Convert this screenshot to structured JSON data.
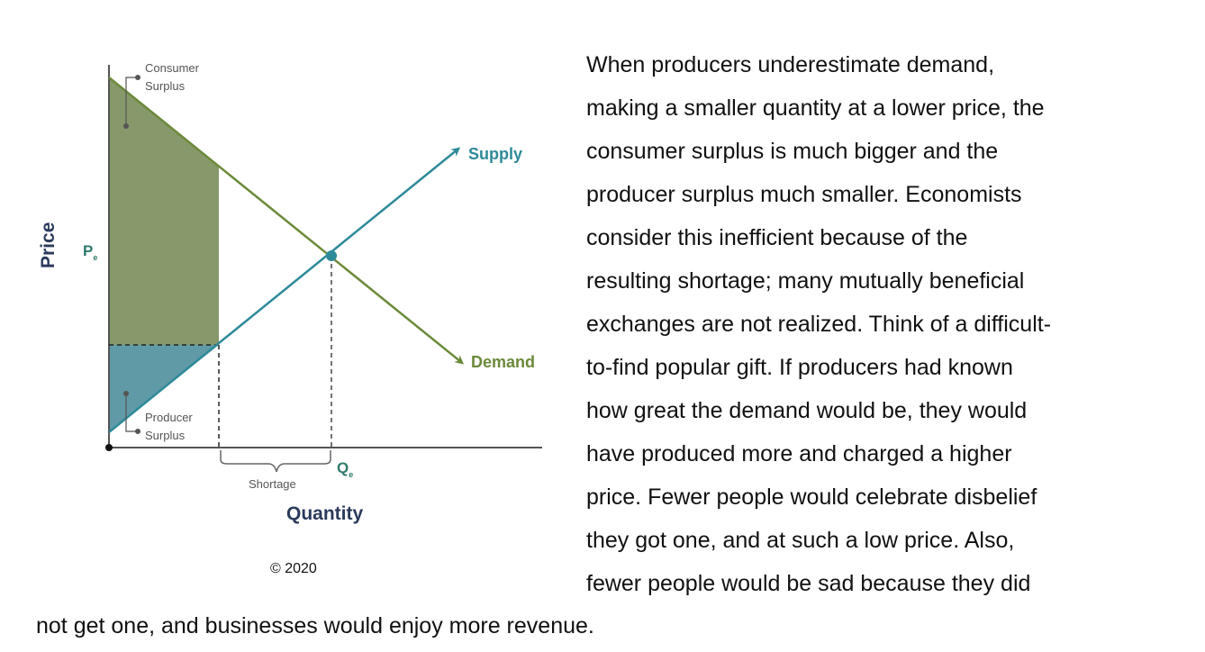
{
  "figure": {
    "y_axis_label": "Price",
    "x_axis_label": "Quantity",
    "price_eq_label": "P",
    "price_eq_sub": "e",
    "quantity_eq_label": "Q",
    "quantity_eq_sub": "e",
    "supply_label": "Supply",
    "demand_label": "Demand",
    "consumer_surplus_label": [
      "Consumer",
      "Surplus"
    ],
    "producer_surplus_label": [
      "Producer",
      "Surplus"
    ],
    "shortage_label": "Shortage",
    "colors": {
      "demand": "#6b8a3a",
      "supply": "#2e8a99",
      "consumer_fill": "#87996a",
      "producer_fill": "#5f9aa6",
      "axis_text": "#2b3a5c"
    }
  },
  "copyright": "© 2020",
  "paragraph_lines": [
    "When producers underestimate demand,",
    "making a smaller quantity at a lower price, the",
    "consumer surplus is much bigger and the",
    "producer surplus much smaller. Economists",
    "consider this inefficient because of the",
    "resulting shortage; many mutually beneficial",
    "exchanges are not realized. Think of a difficult-",
    "to-find popular gift. If producers had known",
    "how great the demand would be, they would",
    "have produced more and charged a higher",
    "price. Fewer people would celebrate disbelief",
    "they got one, and at such a low price. Also,",
    "fewer people would be sad because they did",
    "not get one, and businesses would enjoy more revenue."
  ]
}
